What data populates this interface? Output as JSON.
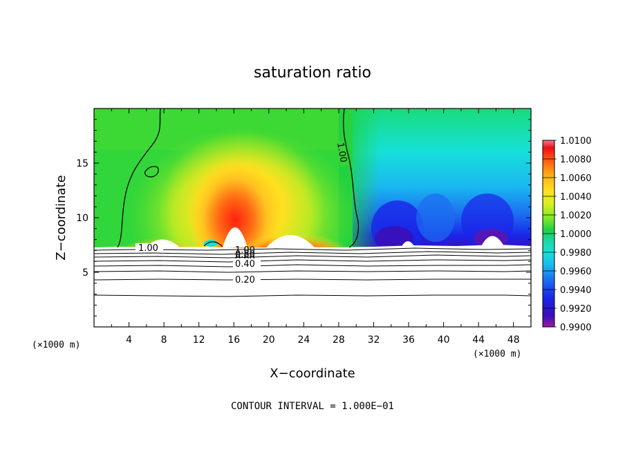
{
  "chart_data": {
    "type": "heatmap",
    "title": "saturation ratio",
    "xlabel": "X−coordinate",
    "ylabel": "Z−coordinate",
    "x_unit_left": "(×1000 m)",
    "x_unit_right": "(×1000 m)",
    "footer": "CONTOUR INTERVAL = 1.000E−01",
    "xlim": [
      0,
      50
    ],
    "ylim": [
      0,
      20
    ],
    "x_ticks": [
      "4",
      "8",
      "12",
      "16",
      "20",
      "24",
      "28",
      "32",
      "36",
      "40",
      "44",
      "48"
    ],
    "y_ticks": [
      "5",
      "10",
      "15"
    ],
    "colorbar": {
      "min": 0.99,
      "max": 1.01,
      "labels": [
        "1.0100",
        "1.0080",
        "1.0060",
        "1.0040",
        "1.0020",
        "1.0000",
        "0.9980",
        "0.9960",
        "0.9940",
        "0.9920",
        "0.9900"
      ],
      "colors": [
        "#9a1aa6",
        "#3a10b8",
        "#1a24e8",
        "#1c6cf0",
        "#1ab8f0",
        "#16e0d8",
        "#1cd69a",
        "#20d040",
        "#7ce82a",
        "#d8f020",
        "#ffe020",
        "#ffb818",
        "#ff7e14",
        "#ff3c10",
        "#e81018",
        "#f87890"
      ]
    },
    "contour_labels": [
      "1.00",
      "1.00",
      "1.00",
      "0.80",
      "0.60",
      "0.40",
      "0.20"
    ],
    "layer_base_z": 7.3
  }
}
